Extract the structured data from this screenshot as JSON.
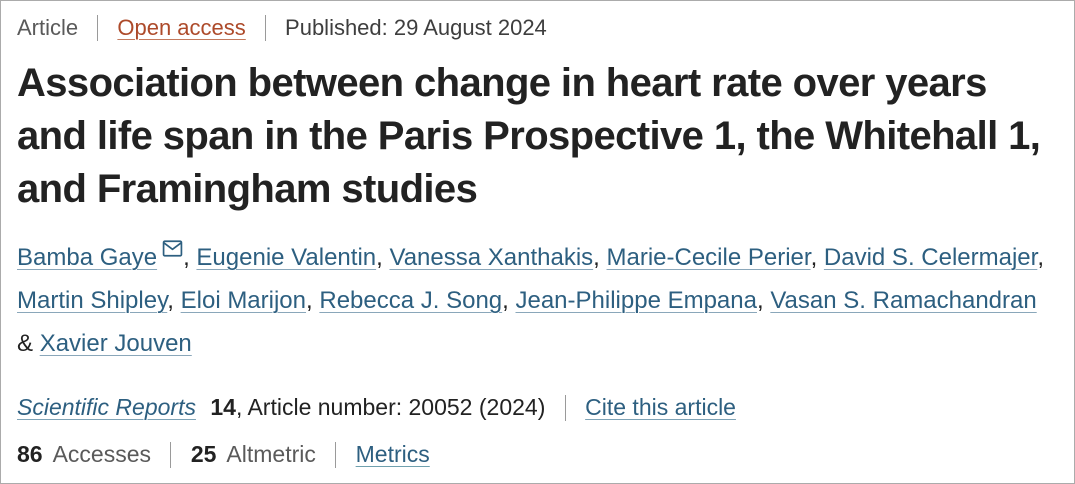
{
  "meta": {
    "type_label": "Article",
    "access_label": "Open access",
    "published": "Published: 29 August 2024"
  },
  "title_lines": [
    "Association between change in heart rate over years",
    "and life span in the Paris Prospective 1, the Whitehall 1,",
    "and Framingham studies"
  ],
  "authors": [
    {
      "name": "Bamba Gaye",
      "email_icon": true
    },
    {
      "name": "Eugenie Valentin"
    },
    {
      "name": "Vanessa Xanthakis"
    },
    {
      "name": "Marie-Cecile Perier"
    },
    {
      "name": "David S. Celermajer"
    },
    {
      "name": "Martin Shipley"
    },
    {
      "name": "Eloi Marijon"
    },
    {
      "name": "Rebecca J. Song"
    },
    {
      "name": "Jean-Philippe Empana"
    },
    {
      "name": "Vasan S. Ramachandran"
    },
    {
      "name": "Xavier Jouven"
    }
  ],
  "author_separator": ", ",
  "author_last_separator": " & ",
  "journal": {
    "name": "Scientific Reports",
    "volume": "14",
    "article_info": ", Article number: 20052 (2024)",
    "cite_label": "Cite this article"
  },
  "metrics": {
    "accesses_count": "86",
    "accesses_label": "Accesses",
    "altmetric_count": "25",
    "altmetric_label": "Altmetric",
    "metrics_label": "Metrics"
  },
  "colors": {
    "link_blue": "#2d5f80",
    "open_access_red": "#ad4a2a",
    "title_color": "#222222",
    "muted_gray": "#5a5a5a",
    "dark_gray": "#3e3e3e",
    "separator_gray": "#9a9a9a",
    "border_gray": "#ababab"
  }
}
